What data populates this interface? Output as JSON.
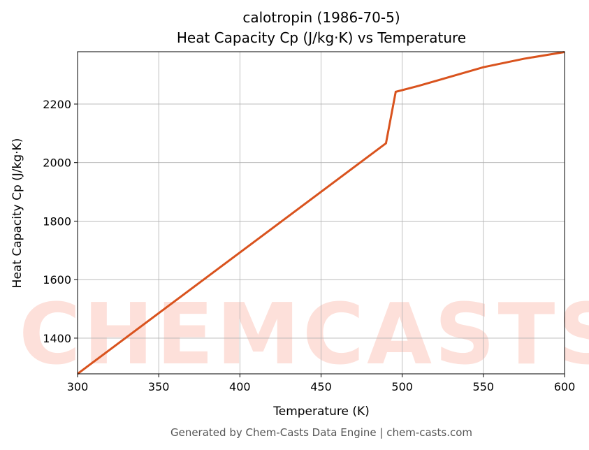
{
  "chart_data": {
    "type": "line",
    "title": "calotropin (1986-70-5)",
    "subtitle": "Heat Capacity Cp (J/kg·K) vs Temperature",
    "x_label": "Temperature (K)",
    "y_label": "Heat Capacity Cp (J/kg·K)",
    "footer": "Generated by Chem-Casts Data Engine | chem-casts.com",
    "watermark": "CHEMCASTS",
    "x": [
      300,
      490,
      496,
      510,
      525,
      550,
      575,
      600
    ],
    "series": [
      {
        "name": "Cp",
        "color": "#d9531e",
        "values": [
          1278,
          2066,
          2242,
          2262,
          2286,
          2326,
          2355,
          2378
        ]
      }
    ],
    "xlim": [
      300,
      600
    ],
    "xticks": [
      300,
      350,
      400,
      450,
      500,
      550,
      600
    ],
    "ylim": [
      1278,
      2379
    ],
    "yticks": [
      1400,
      1600,
      1800,
      2000,
      2200
    ],
    "grid": true
  }
}
